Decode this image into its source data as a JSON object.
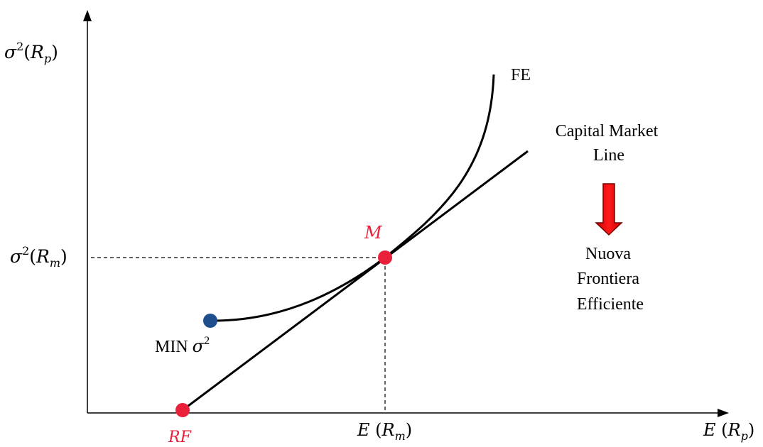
{
  "labels": {
    "y_axis": {
      "base": "σ",
      "sup": "2",
      "open": "(",
      "var": "R",
      "sub": "p",
      "close": ")"
    },
    "x_axis": {
      "base": "E",
      "open": " (",
      "var": "R",
      "sub": "p",
      "close": ")"
    },
    "sigma_m": {
      "base": "σ",
      "sup": "2",
      "open": "(",
      "var": "R",
      "sub": "m",
      "close": ")"
    },
    "e_m": {
      "base": "E",
      "open": " (",
      "var": "R",
      "sub": "m",
      "close": ")"
    },
    "min_variance": {
      "text": "MIN ",
      "base": "σ",
      "sup": "2"
    },
    "point_m": "M",
    "point_rf": "RF",
    "fe": "FE",
    "cml_line1": "Capital Market",
    "cml_line2": "Line",
    "new_frontier_line1": "Nuova",
    "new_frontier_line2": "Frontiera",
    "new_frontier_line3": "Efficiente"
  },
  "colors": {
    "axis": "#000000",
    "curve": "#000000",
    "point_red": "#e8203a",
    "point_blue": "#1f4e8c",
    "label_red": "#e8203a",
    "arrow_fill": "#ff0000",
    "arrow_stroke": "#7a0000"
  }
}
